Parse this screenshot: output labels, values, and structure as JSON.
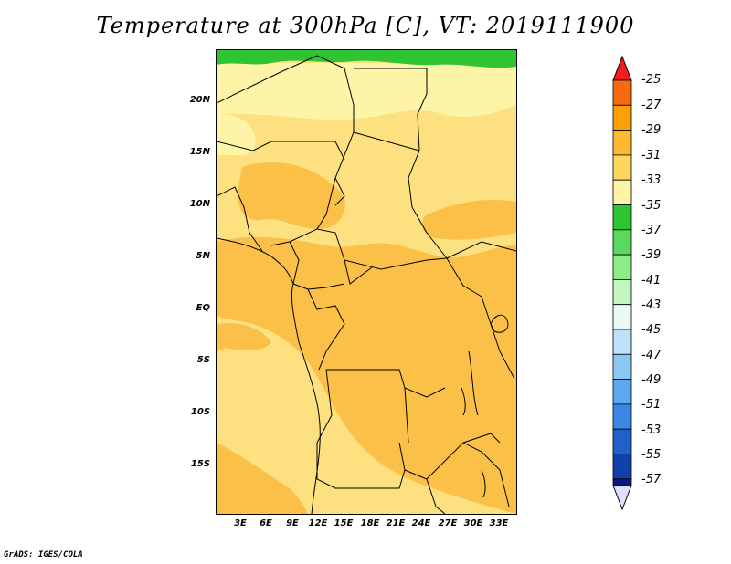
{
  "title": "Temperature at 300hPa [C], VT: 2019111900",
  "credit": "GrADS: IGES/COLA",
  "map": {
    "lat_labels": [
      "20N",
      "15N",
      "10N",
      "5N",
      "EQ",
      "5S",
      "10S",
      "15S"
    ],
    "lon_labels": [
      "3E",
      "6E",
      "9E",
      "12E",
      "15E",
      "18E",
      "21E",
      "24E",
      "27E",
      "30E",
      "33E"
    ]
  },
  "colorbar": {
    "labels": [
      "-25",
      "-27",
      "-29",
      "-31",
      "-33",
      "-35",
      "-37",
      "-39",
      "-41",
      "-43",
      "-45",
      "-47",
      "-49",
      "-51",
      "-53",
      "-55",
      "-57"
    ],
    "colors": [
      "#f01e1e",
      "#f86a10",
      "#fba008",
      "#fdba30",
      "#fdd660",
      "#fef4a8",
      "#2ec432",
      "#5bd85e",
      "#8cec88",
      "#c4f7c0",
      "#e8fbf8",
      "#bde0fb",
      "#8cc8f4",
      "#5ba8ee",
      "#3a88e4",
      "#2060c8",
      "#1040a8",
      "#0a1a78",
      "#e0e0ff"
    ]
  },
  "field_colors": {
    "t33": "#fef4a8",
    "t31": "#fde080",
    "t29": "#fbc048",
    "t37": "#2ec432"
  }
}
